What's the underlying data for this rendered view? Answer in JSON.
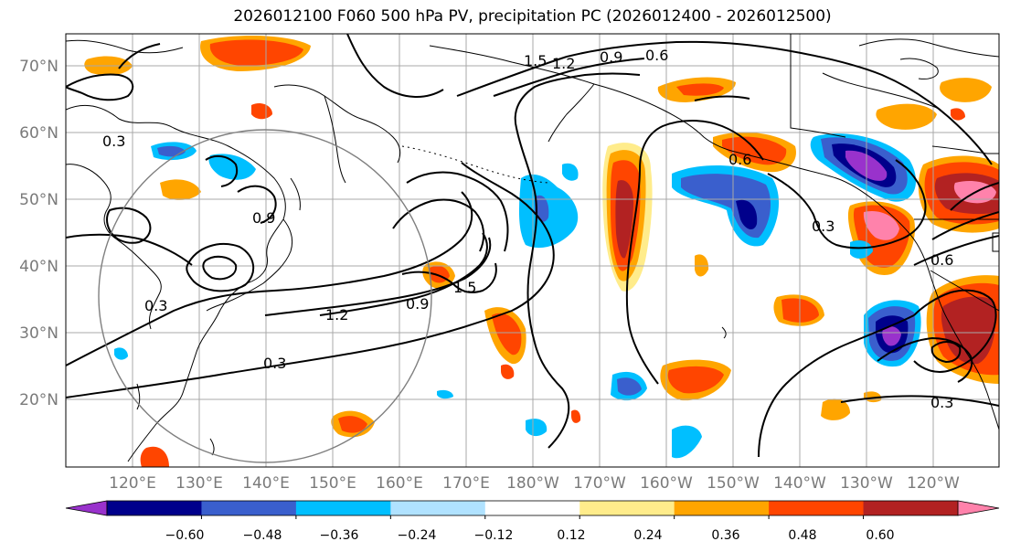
{
  "title": "2026012100 F060 500 hPa PV, precipitation PC (2026012400 - 2026012500)",
  "lat_labels": [
    "70°N",
    "60°N",
    "50°N",
    "40°N",
    "30°N",
    "20°N"
  ],
  "lon_labels": [
    "120°E",
    "130°E",
    "140°E",
    "150°E",
    "160°E",
    "170°E",
    "180°W",
    "170°W",
    "160°W",
    "150°W",
    "140°W",
    "130°W",
    "120°W"
  ],
  "colorbar": {
    "ticks": [
      "−0.60",
      "−0.48",
      "−0.36",
      "−0.24",
      "−0.12",
      "0.12",
      "0.24",
      "0.36",
      "0.48",
      "0.60"
    ],
    "colors": [
      "#9932CC",
      "#00008B",
      "#3A5FCD",
      "#00BFFF",
      "#B0E2FF",
      "#FFFFFF",
      "#FFEC8B",
      "#FFA500",
      "#FF4500",
      "#B22222",
      "#FF82AB"
    ]
  },
  "contour_labels": [
    "0.3",
    "0.3",
    "0.6",
    "0.6",
    "0.9",
    "0.9",
    "1.2",
    "1.2",
    "1.5",
    "1.5",
    "0.3",
    "0.6",
    "0.3",
    "0.3",
    "0.9"
  ]
}
